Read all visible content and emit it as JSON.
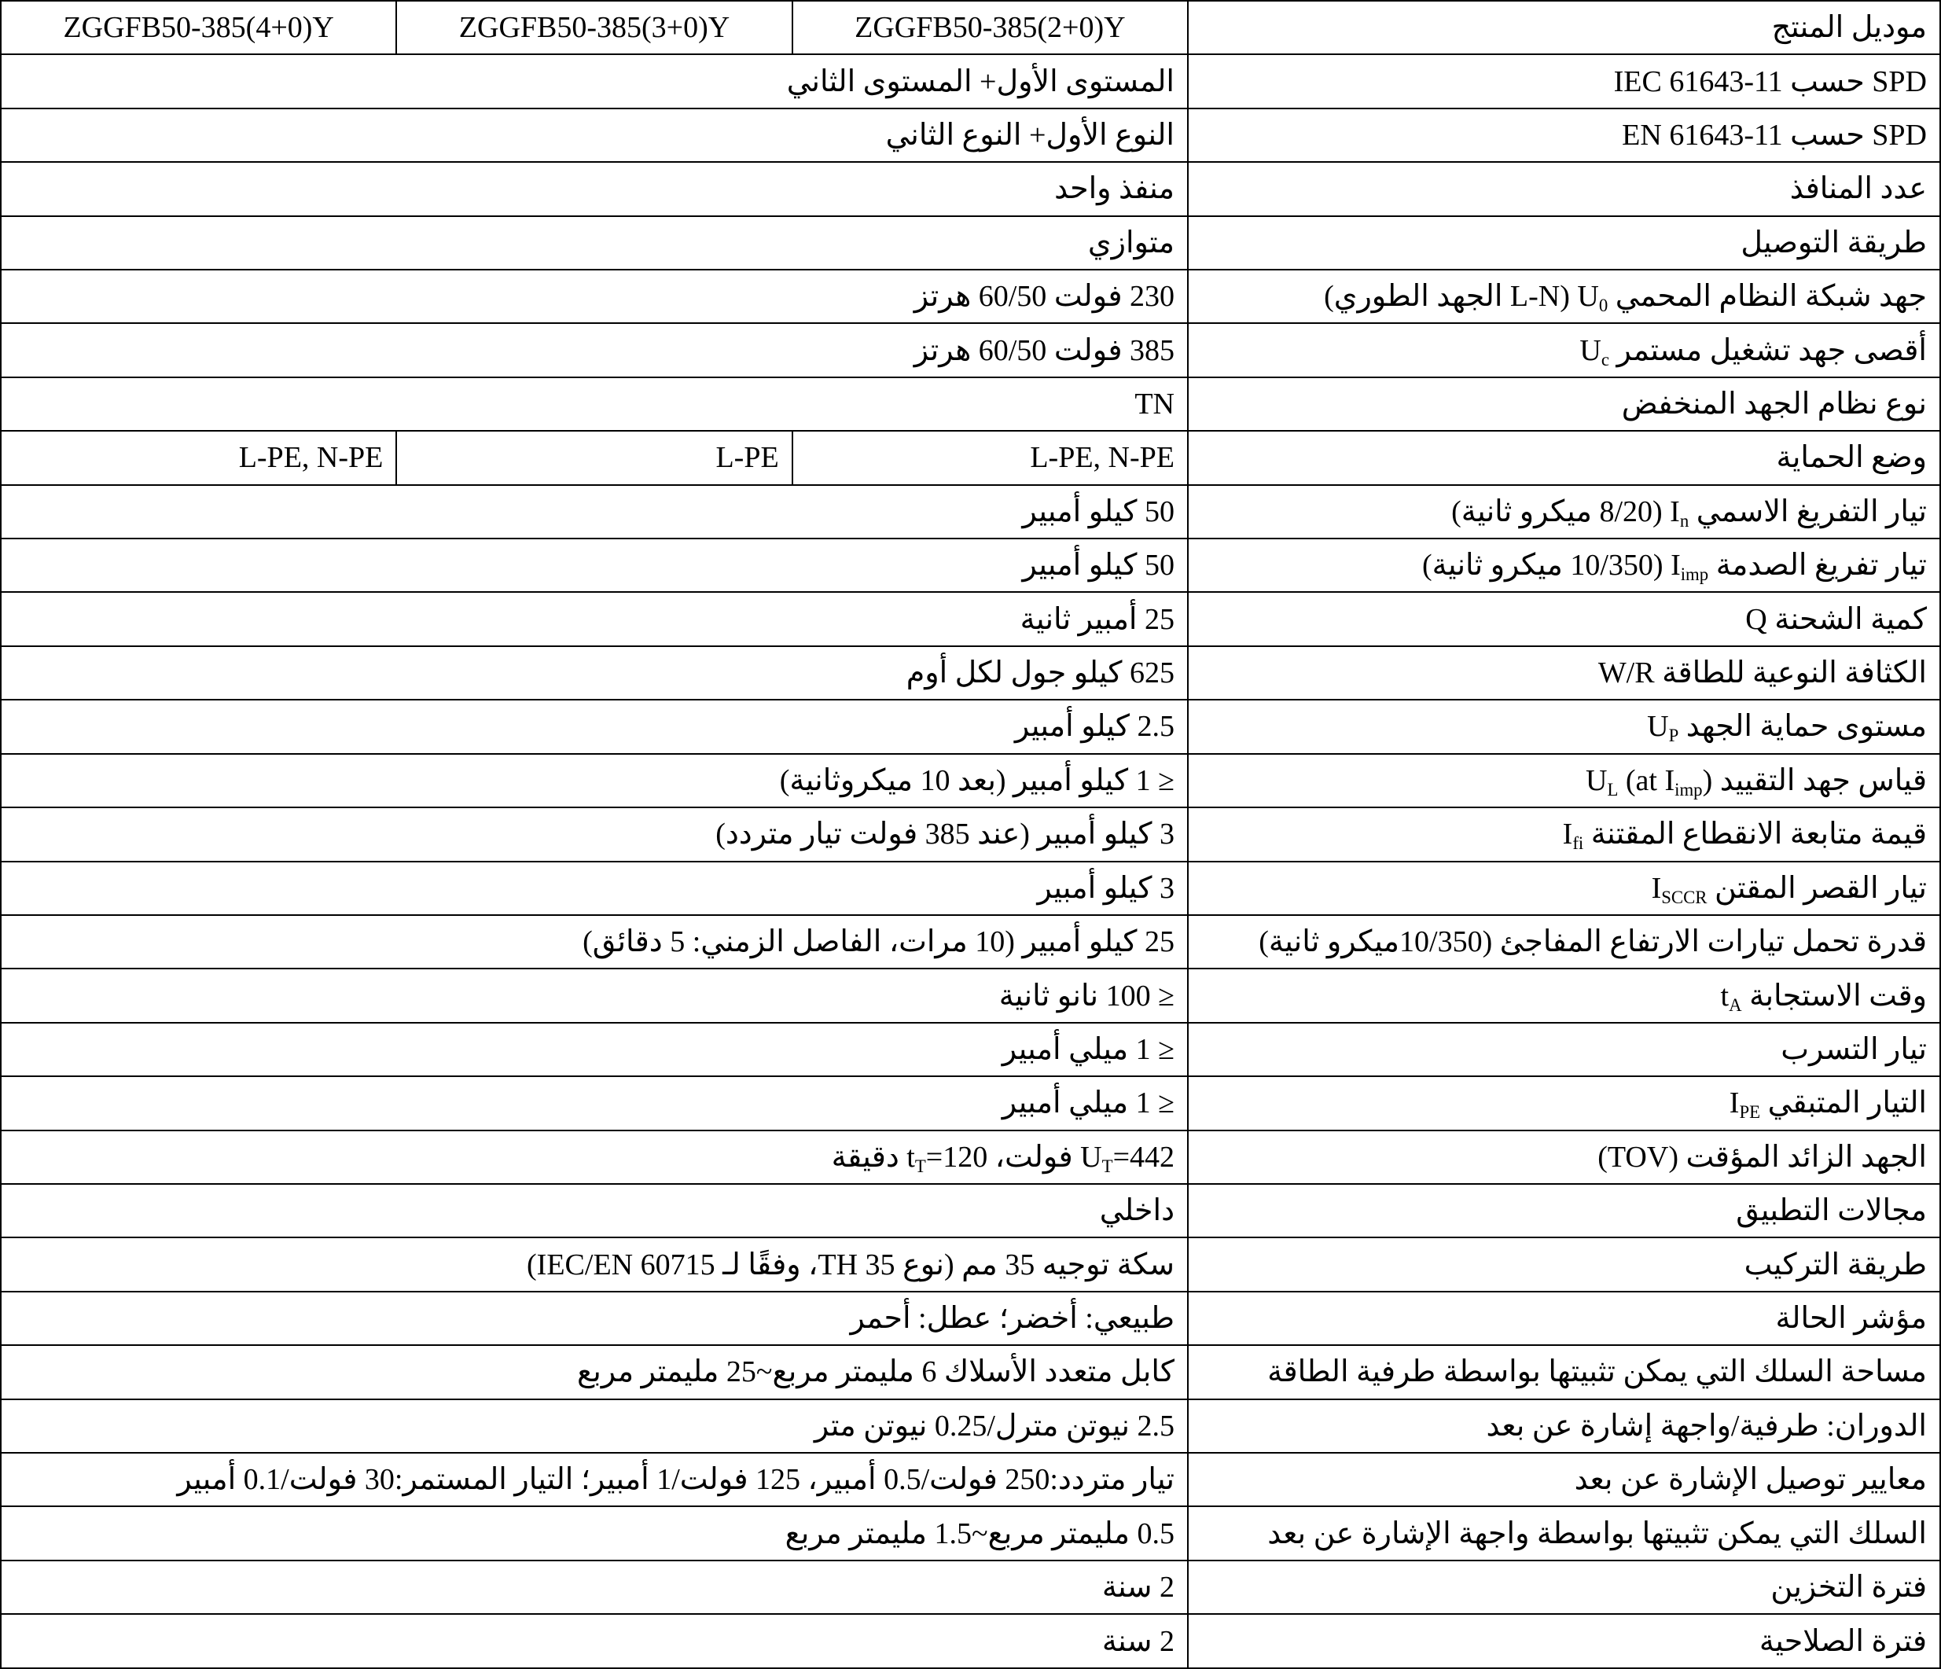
{
  "rows": [
    {
      "label": [
        {
          "t": "موديل المنتج"
        }
      ],
      "values": [
        "ZGGFB50-385(2+0)Y",
        "ZGGFB50-385(3+0)Y",
        "ZGGFB50-385(4+0)Y"
      ],
      "is_model_row": true
    },
    {
      "label": [
        {
          "t": "SPD حسب  IEC 61643-11"
        }
      ],
      "value": [
        {
          "t": "المستوى الأول+ المستوى الثاني"
        }
      ]
    },
    {
      "label": [
        {
          "t": "SPD حسب  EN 61643-11"
        }
      ],
      "value": [
        {
          "t": "النوع الأول+ النوع الثاني"
        }
      ]
    },
    {
      "label": [
        {
          "t": "عدد المنافذ"
        }
      ],
      "value": [
        {
          "t": "منفذ واحد"
        }
      ]
    },
    {
      "label": [
        {
          "t": "طريقة التوصيل"
        }
      ],
      "value": [
        {
          "t": "متوازي"
        }
      ]
    },
    {
      "label": [
        {
          "t": "جهد شبكة النظام المحمي "
        },
        {
          "t": "U"
        },
        {
          "sub": "0"
        },
        {
          "t": " (L-N الجهد الطوري)"
        }
      ],
      "value": [
        {
          "t": "230 فولت  60/50 هرتز"
        }
      ]
    },
    {
      "label": [
        {
          "t": "أقصى جهد تشغيل مستمر "
        },
        {
          "t": "U"
        },
        {
          "sub": "c"
        }
      ],
      "value": [
        {
          "t": "385 فولت 60/50 هرتز"
        }
      ]
    },
    {
      "label": [
        {
          "t": "نوع نظام الجهد المنخفض"
        }
      ],
      "value": [
        {
          "t": "TN"
        }
      ]
    },
    {
      "label": [
        {
          "t": "وضع الحماية"
        }
      ],
      "values": [
        "L-PE, N-PE",
        "L-PE",
        "L-PE, N-PE"
      ]
    },
    {
      "label": [
        {
          "t": "تيار التفريغ الاسمي "
        },
        {
          "t": "I"
        },
        {
          "sub": "n"
        },
        {
          "t": " (8/20 ميكرو ثانية)"
        }
      ],
      "value": [
        {
          "t": "50 كيلو أمبير"
        }
      ]
    },
    {
      "label": [
        {
          "t": "تيار تفريغ الصدمة "
        },
        {
          "t": "I"
        },
        {
          "sub": "imp"
        },
        {
          "t": " (10/350 ميكرو ثانية)"
        }
      ],
      "value": [
        {
          "t": "50 كيلو أمبير"
        }
      ]
    },
    {
      "label": [
        {
          "t": "كمية الشحنة Q"
        }
      ],
      "value": [
        {
          "t": "25 أمبير ثانية"
        }
      ]
    },
    {
      "label": [
        {
          "t": "الكثافة النوعية للطاقة W/R"
        }
      ],
      "value": [
        {
          "t": "625 كيلو جول لكل أوم"
        }
      ]
    },
    {
      "label": [
        {
          "t": "مستوى حماية الجهد "
        },
        {
          "t": "U"
        },
        {
          "sub": "P"
        }
      ],
      "value": [
        {
          "t": "2.5 كيلو أمبير"
        }
      ]
    },
    {
      "label": [
        {
          "t": "قياس جهد التقييد "
        },
        {
          "t": "U"
        },
        {
          "sub": "L"
        },
        {
          "t": " (at I"
        },
        {
          "sub": "imp"
        },
        {
          "t": ")"
        }
      ],
      "value": [
        {
          "t": "≤ 1 كيلو أمبير (بعد 10 ميكروثانية)"
        }
      ]
    },
    {
      "label": [
        {
          "t": "قيمة متابعة الانقطاع المقتنة "
        },
        {
          "t": "I"
        },
        {
          "sub": "fi"
        }
      ],
      "value": [
        {
          "t": "3 كيلو أمبير (عند 385 فولت تيار متردد)"
        }
      ]
    },
    {
      "label": [
        {
          "t": "تيار القصر المقتن "
        },
        {
          "t": "I"
        },
        {
          "sub": "SCCR"
        }
      ],
      "value": [
        {
          "t": "3 كيلو أمبير"
        }
      ]
    },
    {
      "label": [
        {
          "t": "قدرة تحمل تيارات الارتفاع المفاجئ (10/350ميكرو ثانية)"
        }
      ],
      "value": [
        {
          "t": "25 كيلو أمبير (10 مرات، الفاصل الزمني: 5 دقائق)"
        }
      ]
    },
    {
      "label": [
        {
          "t": "وقت الاستجابة "
        },
        {
          "t": "t"
        },
        {
          "sub": "A"
        }
      ],
      "value": [
        {
          "t": "≤ 100 نانو ثانية"
        }
      ]
    },
    {
      "label": [
        {
          "t": "تيار التسرب"
        }
      ],
      "value": [
        {
          "t": "≤ 1 ميلي أمبير"
        }
      ]
    },
    {
      "label": [
        {
          "t": "التيار المتبقي "
        },
        {
          "t": "I"
        },
        {
          "sub": "PE"
        }
      ],
      "value": [
        {
          "t": "≤ 1 ميلي أمبير"
        }
      ]
    },
    {
      "label": [
        {
          "t": "الجهد الزائد المؤقت (TOV)"
        }
      ],
      "value": [
        {
          "t": "U"
        },
        {
          "sub": "T"
        },
        {
          "t": "=442 فولت، t"
        },
        {
          "sub": "T"
        },
        {
          "t": "=120 دقيقة"
        }
      ]
    },
    {
      "label": [
        {
          "t": "مجالات التطبيق"
        }
      ],
      "value": [
        {
          "t": "داخلي"
        }
      ]
    },
    {
      "label": [
        {
          "t": "طريقة التركيب"
        }
      ],
      "value": [
        {
          "t": "سكة توجيه 35 مم (نوع TH 35، وفقًا لـ IEC/EN 60715)"
        }
      ]
    },
    {
      "label": [
        {
          "t": "مؤشر الحالة"
        }
      ],
      "value": [
        {
          "t": "طبيعي: أخضر؛ عطل: أحمر"
        }
      ]
    },
    {
      "label": [
        {
          "t": "مساحة السلك التي يمكن تثبيتها بواسطة طرفية الطاقة"
        }
      ],
      "value": [
        {
          "t": "كابل متعدد الأسلاك 6 مليمتر مربع~25 مليمتر مربع"
        }
      ]
    },
    {
      "label": [
        {
          "t": "الدوران: طرفية/واجهة إشارة عن بعد"
        }
      ],
      "value": [
        {
          "t": "2.5 نيوتن مترل/0.25 نيوتن متر"
        }
      ]
    },
    {
      "label": [
        {
          "t": "معايير توصيل الإشارة عن بعد"
        }
      ],
      "value": [
        {
          "t": "تيار متردد:250 فولت/0.5 أمبير، 125 فولت/1 أمبير؛ التيار المستمر:30 فولت/0.1 أمبير"
        }
      ]
    },
    {
      "label": [
        {
          "t": "السلك التي يمكن تثبيتها بواسطة واجهة الإشارة عن بعد"
        }
      ],
      "value": [
        {
          "t": "0.5 مليمتر مربع~1.5 مليمتر مربع"
        }
      ]
    },
    {
      "label": [
        {
          "t": "فترة التخزين"
        }
      ],
      "value": [
        {
          "t": "2 سنة"
        }
      ]
    },
    {
      "label": [
        {
          "t": "فترة الصلاحية"
        }
      ],
      "value": [
        {
          "t": "2 سنة"
        }
      ]
    }
  ]
}
